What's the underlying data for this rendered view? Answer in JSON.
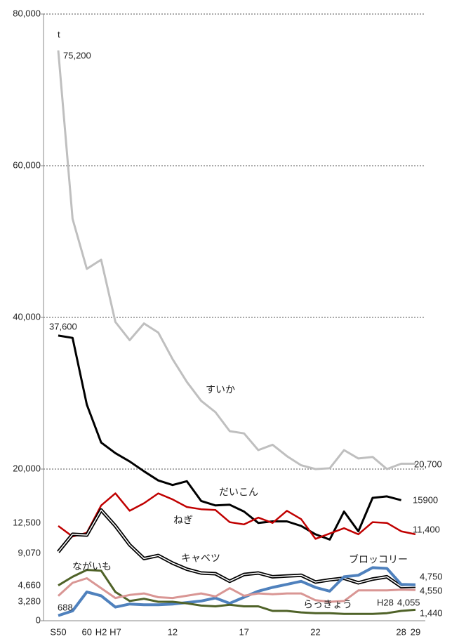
{
  "chart_data": {
    "type": "line",
    "y_label": "t",
    "categories": [
      "S50",
      null,
      "60",
      "H2",
      "H7",
      null,
      null,
      null,
      "12",
      null,
      null,
      null,
      null,
      "17",
      null,
      null,
      null,
      null,
      "22",
      null,
      null,
      null,
      null,
      null,
      "28",
      "29"
    ],
    "ylim": [
      0,
      80000
    ],
    "yticks": [
      {
        "value": 0,
        "label": "0"
      },
      {
        "value": 20000,
        "label": "20,000"
      },
      {
        "value": 40000,
        "label": "40,000"
      },
      {
        "value": 60000,
        "label": "60,000"
      },
      {
        "value": 80000,
        "label": "80,000"
      }
    ],
    "grid": true,
    "annotations": [
      "H28"
    ],
    "series": [
      {
        "name": "すいか",
        "color": "#bfbfbf",
        "values": [
          75200,
          53000,
          46400,
          47600,
          39400,
          37000,
          39200,
          38000,
          34500,
          31500,
          29000,
          27500,
          25000,
          24700,
          22500,
          23200,
          21700,
          20500,
          20000,
          20100,
          22500,
          21400,
          21600,
          20000,
          20700,
          20700
        ],
        "value_labels": [
          "75,200",
          null,
          null,
          null,
          null,
          null,
          null,
          null,
          null,
          null,
          null,
          null,
          null,
          null,
          null,
          null,
          null,
          null,
          null,
          null,
          null,
          null,
          null,
          null,
          null,
          "20,700"
        ]
      },
      {
        "name": "だいこん",
        "color": "#000000",
        "values": [
          37600,
          37300,
          28500,
          23500,
          22100,
          21000,
          19700,
          18500,
          17900,
          18400,
          15800,
          15200,
          15300,
          14400,
          12900,
          13100,
          13100,
          12500,
          11400,
          10700,
          14400,
          11800,
          16200,
          16400,
          15900,
          null
        ],
        "value_labels": [
          "37,600",
          null,
          null,
          null,
          null,
          null,
          null,
          null,
          null,
          null,
          null,
          null,
          null,
          null,
          null,
          null,
          null,
          null,
          null,
          null,
          null,
          null,
          null,
          null,
          "15900",
          null
        ]
      },
      {
        "name": "ねぎ",
        "color": "#c00000",
        "values": [
          12500,
          11100,
          11600,
          15200,
          16800,
          14500,
          15500,
          16800,
          16000,
          15000,
          14700,
          14600,
          13000,
          12700,
          13600,
          12900,
          14500,
          13400,
          10800,
          11500,
          12200,
          11400,
          13000,
          12900,
          11800,
          11400
        ],
        "value_labels": [
          "12,500",
          null,
          null,
          null,
          null,
          null,
          null,
          null,
          null,
          null,
          null,
          null,
          null,
          null,
          null,
          null,
          null,
          null,
          null,
          null,
          null,
          null,
          null,
          null,
          null,
          "11,400"
        ]
      },
      {
        "name": "キャベツ",
        "color": "#000000",
        "values": [
          9070,
          11400,
          11300,
          14600,
          12500,
          10000,
          8200,
          8600,
          7600,
          6800,
          6300,
          6200,
          5200,
          6100,
          6300,
          5800,
          5900,
          6000,
          5100,
          5400,
          5600,
          5000,
          5500,
          5800,
          4500,
          4550
        ],
        "value_labels": [
          "9,070",
          null,
          null,
          null,
          null,
          null,
          null,
          null,
          null,
          null,
          null,
          null,
          null,
          null,
          null,
          null,
          null,
          null,
          null,
          null,
          null,
          null,
          null,
          null,
          null,
          "4,550"
        ]
      },
      {
        "name": "ブロッコリー",
        "color": "#4f81bd",
        "values": [
          688,
          1300,
          3800,
          3300,
          1800,
          2200,
          2100,
          2100,
          2200,
          2400,
          2600,
          3000,
          2300,
          3100,
          3900,
          4400,
          4800,
          5200,
          4400,
          3900,
          5800,
          6000,
          7000,
          6900,
          4800,
          4750
        ],
        "value_labels": [
          "688",
          null,
          null,
          null,
          null,
          null,
          null,
          null,
          null,
          null,
          null,
          null,
          null,
          null,
          null,
          null,
          null,
          null,
          null,
          null,
          null,
          null,
          null,
          null,
          null,
          "4,750"
        ]
      },
      {
        "name": "ながいも",
        "color": "#4f6228",
        "values": [
          4660,
          5800,
          6700,
          6600,
          3800,
          2600,
          2900,
          2500,
          2500,
          2300,
          2000,
          1900,
          2100,
          1900,
          1900,
          1300,
          1300,
          1100,
          1000,
          1000,
          900,
          900,
          900,
          1000,
          1300,
          1440
        ],
        "value_labels": [
          "4,660",
          null,
          null,
          null,
          null,
          null,
          null,
          null,
          null,
          null,
          null,
          null,
          null,
          null,
          null,
          null,
          null,
          null,
          null,
          null,
          null,
          null,
          null,
          null,
          null,
          "1,440"
        ]
      },
      {
        "name": "らっきょう",
        "color": "#d99694",
        "values": [
          3280,
          5000,
          5600,
          4300,
          3000,
          3400,
          3600,
          3100,
          3000,
          3300,
          3600,
          3200,
          4300,
          3300,
          3600,
          3500,
          3600,
          3600,
          2700,
          2500,
          2600,
          4000,
          4000,
          4000,
          4100,
          4055
        ],
        "value_labels": [
          "3,280",
          null,
          null,
          null,
          null,
          null,
          null,
          null,
          null,
          null,
          null,
          null,
          null,
          null,
          null,
          null,
          null,
          null,
          null,
          null,
          null,
          null,
          null,
          null,
          null,
          "4,055"
        ]
      }
    ]
  }
}
